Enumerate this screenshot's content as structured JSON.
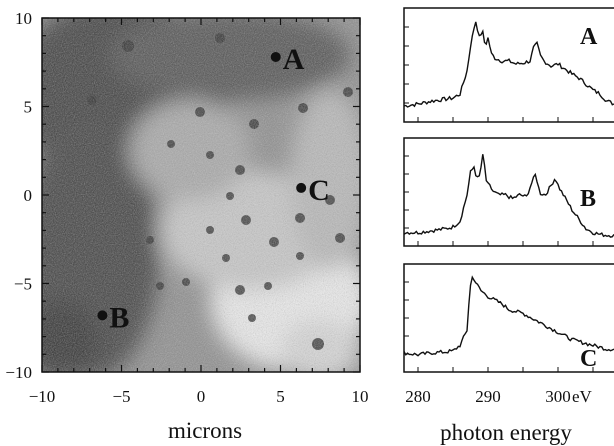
{
  "figure": {
    "map": {
      "xlabel": "microns",
      "x_ticks": [
        "−10",
        "−5",
        "0",
        "5",
        "10"
      ],
      "y_ticks": [
        "10",
        "5",
        "0",
        "−5",
        "−10"
      ],
      "xlim": [
        -10,
        10
      ],
      "ylim": [
        -10,
        10
      ],
      "points": [
        {
          "label": "A",
          "x": 4.7,
          "y": 7.8
        },
        {
          "label": "C",
          "x": 6.3,
          "y": 0.4
        },
        {
          "label": "B",
          "x": -6.2,
          "y": -6.8
        }
      ]
    },
    "spectra": {
      "xlabel": "photon energy",
      "x_ticks": [
        "280",
        "290",
        "300"
      ],
      "x_unit": "eV",
      "xlim": [
        278,
        308
      ],
      "panels": [
        {
          "label": "A"
        },
        {
          "label": "B"
        },
        {
          "label": "C"
        }
      ]
    }
  },
  "chart_data": [
    {
      "type": "scatter",
      "xlabel": "microns",
      "ylabel": "",
      "xlim": [
        -10,
        10
      ],
      "ylim": [
        -10,
        10
      ],
      "series": [
        {
          "x": [
            4.7,
            6.3,
            -6.2
          ],
          "y": [
            7.8,
            0.4,
            -6.8
          ],
          "labels": [
            "A",
            "C",
            "B"
          ]
        }
      ]
    },
    {
      "type": "line",
      "xlabel": "photon energy",
      "x_unit": "eV",
      "xlim": [
        278,
        308
      ],
      "series": [
        {
          "name": "A",
          "x": [
            278,
            280,
            282,
            284,
            285,
            286,
            287,
            287.5,
            288,
            288.3,
            288.7,
            289.2,
            289.6,
            290,
            290.5,
            291,
            292,
            293,
            294,
            295,
            296,
            296.5,
            297,
            297.5,
            298,
            299,
            300,
            301,
            302,
            303,
            304,
            305,
            306,
            307,
            308
          ],
          "y": [
            0.1,
            0.12,
            0.15,
            0.17,
            0.18,
            0.22,
            0.45,
            0.7,
            0.88,
            0.96,
            0.78,
            0.85,
            0.7,
            0.78,
            0.62,
            0.58,
            0.55,
            0.55,
            0.52,
            0.53,
            0.55,
            0.68,
            0.72,
            0.6,
            0.55,
            0.5,
            0.52,
            0.47,
            0.42,
            0.38,
            0.32,
            0.26,
            0.22,
            0.15,
            0.12
          ]
        },
        {
          "name": "B",
          "x": [
            278,
            280,
            282,
            284,
            285,
            286,
            287,
            287.5,
            288,
            288.4,
            288.8,
            289.3,
            289.8,
            290.2,
            290.7,
            291.5,
            292.5,
            293.5,
            294.5,
            295.5,
            296.3,
            296.8,
            297.4,
            298.2,
            299,
            299.6,
            300.2,
            301,
            302,
            303,
            304,
            305,
            306,
            307,
            308
          ],
          "y": [
            0.08,
            0.08,
            0.1,
            0.12,
            0.14,
            0.2,
            0.48,
            0.72,
            0.78,
            0.65,
            0.68,
            0.92,
            0.6,
            0.58,
            0.52,
            0.48,
            0.48,
            0.44,
            0.48,
            0.46,
            0.62,
            0.7,
            0.5,
            0.48,
            0.58,
            0.66,
            0.55,
            0.45,
            0.32,
            0.22,
            0.12,
            0.08,
            0.06,
            0.05,
            0.05
          ]
        },
        {
          "name": "C",
          "x": [
            278,
            280,
            282,
            284,
            285,
            286,
            287,
            287.4,
            287.8,
            288.3,
            289,
            290,
            291,
            292,
            293,
            294,
            295,
            296,
            297,
            298,
            299,
            300,
            301,
            302,
            303,
            304,
            305,
            306,
            307,
            308
          ],
          "y": [
            0.14,
            0.12,
            0.14,
            0.15,
            0.16,
            0.22,
            0.38,
            0.82,
            0.96,
            0.88,
            0.8,
            0.74,
            0.7,
            0.66,
            0.6,
            0.58,
            0.56,
            0.52,
            0.48,
            0.44,
            0.4,
            0.36,
            0.32,
            0.28,
            0.26,
            0.24,
            0.22,
            0.2,
            0.18,
            0.18
          ]
        }
      ]
    }
  ]
}
